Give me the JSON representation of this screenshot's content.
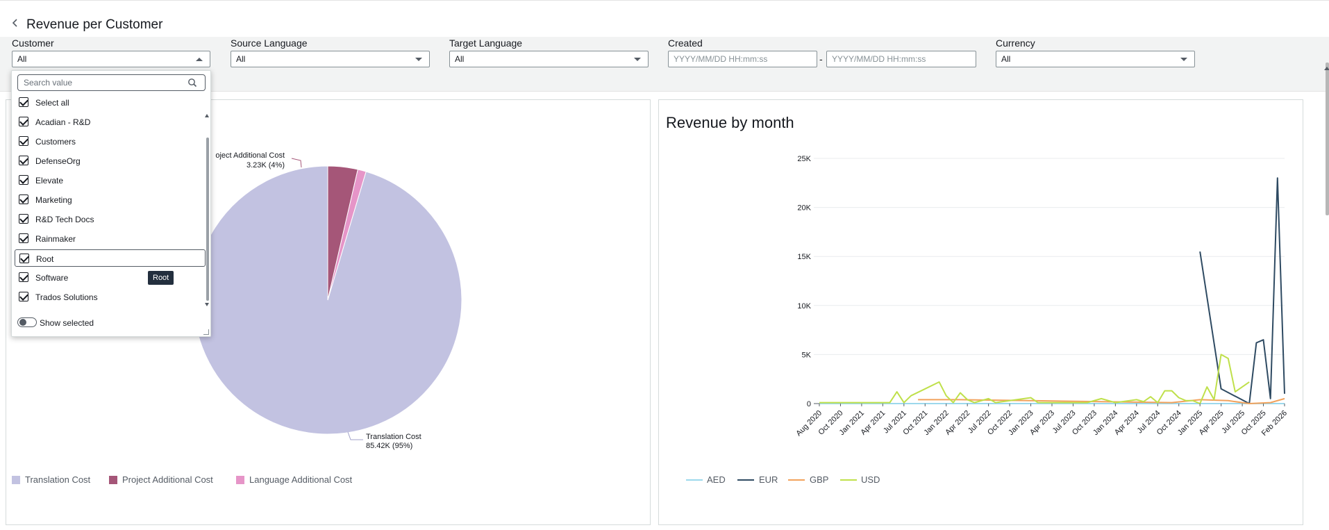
{
  "page": {
    "title": "Revenue per Customer"
  },
  "filters": {
    "customer": {
      "label": "Customer",
      "value": "All"
    },
    "source_language": {
      "label": "Source Language",
      "value": "All"
    },
    "target_language": {
      "label": "Target Language",
      "value": "All"
    },
    "created": {
      "label": "Created",
      "from_placeholder": "YYYY/MM/DD HH:mm:ss",
      "to_placeholder": "YYYY/MM/DD HH:mm:ss",
      "separator": "-"
    },
    "currency": {
      "label": "Currency",
      "value": "All"
    }
  },
  "dropdown": {
    "search_placeholder": "Search value",
    "options": [
      "Select all",
      "Acadian - R&D",
      "Customers",
      "DefenseOrg",
      "Elevate",
      "Marketing",
      "R&D Tech Docs",
      "Rainmaker",
      "Root",
      "Software",
      "Trados Solutions"
    ],
    "show_selected_label": "Show selected",
    "tooltip": "Root"
  },
  "pie": {
    "label_project": "oject Additional Cost",
    "label_project_value": "3.23K (4%)",
    "label_translation": "Translation Cost",
    "label_translation_value": "85.42K (95%)",
    "legend": [
      "Translation Cost",
      "Project Additional Cost",
      "Language Additional Cost"
    ]
  },
  "colors": {
    "translation": "#c2c2e1",
    "project": "#a55678",
    "language": "#e695c8",
    "AED": "#9cd8ec",
    "EUR": "#2e4a62",
    "GBP": "#f2a25c",
    "USD": "#bfe04a"
  },
  "chart_data": [
    {
      "type": "pie",
      "title": "",
      "slices": [
        {
          "label": "Translation Cost",
          "value": 85.42,
          "percent": 95
        },
        {
          "label": "Project Additional Cost",
          "value": 3.23,
          "percent": 4
        },
        {
          "label": "Language Additional Cost",
          "value": 0.9,
          "percent": 1
        }
      ],
      "legend": "bottom"
    },
    {
      "type": "line",
      "title": "Revenue by month",
      "x_tick_labels": [
        "Aug 2020",
        "Oct 2020",
        "Jan 2021",
        "Apr 2021",
        "Jul 2021",
        "Oct 2021",
        "Jan 2022",
        "Apr 2022",
        "Jul 2022",
        "Oct 2022",
        "Jan 2023",
        "Apr 2023",
        "Jul 2023",
        "Oct 2023",
        "Jan 2024",
        "Apr 2024",
        "Jul 2024",
        "Oct 2024",
        "Jan 2025",
        "Apr 2025",
        "Jul 2025",
        "Oct 2025",
        "Feb 2026"
      ],
      "y_tick_labels": [
        "0",
        "5K",
        "10K",
        "15K",
        "20K",
        "25K"
      ],
      "ylim": [
        0,
        25000
      ],
      "xlim": [
        0,
        66
      ],
      "legend": "bottom-left",
      "series": [
        {
          "name": "AED",
          "points": [
            [
              0,
              0
            ],
            [
              66,
              0
            ]
          ]
        },
        {
          "name": "EUR",
          "points": [
            [
              54,
              15500
            ],
            [
              57,
              1500
            ],
            [
              61,
              0
            ],
            [
              62,
              6200
            ],
            [
              63,
              6500
            ],
            [
              64,
              500
            ],
            [
              65,
              23000
            ],
            [
              66,
              1000
            ]
          ]
        },
        {
          "name": "GBP",
          "points": [
            [
              14,
              400
            ],
            [
              20,
              400
            ],
            [
              30,
              300
            ],
            [
              40,
              200
            ],
            [
              50,
              100
            ],
            [
              54,
              400
            ],
            [
              58,
              300
            ],
            [
              61,
              0
            ],
            [
              64,
              100
            ],
            [
              66,
              500
            ]
          ]
        },
        {
          "name": "USD",
          "points": [
            [
              0,
              100
            ],
            [
              8,
              100
            ],
            [
              10,
              100
            ],
            [
              11,
              1200
            ],
            [
              12,
              100
            ],
            [
              13,
              800
            ],
            [
              15,
              1500
            ],
            [
              17,
              2200
            ],
            [
              18,
              800
            ],
            [
              19,
              100
            ],
            [
              20,
              1100
            ],
            [
              21,
              400
            ],
            [
              22,
              100
            ],
            [
              24,
              500
            ],
            [
              25,
              100
            ],
            [
              30,
              600
            ],
            [
              31,
              100
            ],
            [
              38,
              100
            ],
            [
              40,
              500
            ],
            [
              42,
              100
            ],
            [
              45,
              400
            ],
            [
              46,
              200
            ],
            [
              47,
              700
            ],
            [
              48,
              100
            ],
            [
              49,
              1300
            ],
            [
              50,
              1300
            ],
            [
              51,
              600
            ],
            [
              52,
              300
            ],
            [
              53,
              300
            ],
            [
              54,
              0
            ],
            [
              55,
              1700
            ],
            [
              56,
              400
            ],
            [
              57,
              5000
            ],
            [
              58,
              4600
            ],
            [
              59,
              1200
            ],
            [
              61,
              2200
            ]
          ]
        }
      ]
    }
  ]
}
